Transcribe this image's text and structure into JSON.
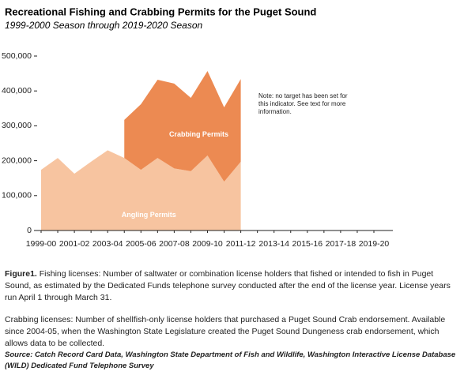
{
  "chart_data": {
    "type": "stacked_area",
    "title": "Recreational Fishing and Crabbing Permits for the Puget Sound",
    "subtitle": "1999-2000 Season through 2019-2020 Season",
    "categories": [
      "1999-00",
      null,
      "2001-02",
      null,
      "2003-04",
      null,
      "2005-06",
      null,
      "2007-08",
      null,
      "2009-10",
      null,
      "2011-12",
      null,
      "2013-14",
      null,
      "2015-16",
      null,
      "2017-18",
      null,
      "2019-20"
    ],
    "series": [
      {
        "name": "Angling Permits",
        "color": "#f7c4a0",
        "values": [
          174000,
          208000,
          163000,
          197000,
          230000,
          208000,
          174000,
          208000,
          178000,
          170000,
          215000,
          140000,
          197000,
          null,
          null,
          null,
          null,
          null,
          null,
          null,
          null
        ]
      },
      {
        "name": "Crabbing Permits",
        "color": "#ec8a52",
        "values": [
          null,
          null,
          null,
          null,
          null,
          109000,
          188000,
          224000,
          243000,
          210000,
          242000,
          213000,
          237000,
          null,
          null,
          null,
          null,
          null,
          null,
          null,
          null
        ]
      }
    ],
    "ylim": [
      0,
      500000
    ],
    "yticks": [
      0,
      {
        "value": 100000,
        "label": "100,000"
      },
      {
        "value": 200000,
        "label": "200,000"
      },
      {
        "value": 300000,
        "label": "300,000"
      },
      {
        "value": 400000,
        "label": "400,000"
      },
      {
        "value": 500000,
        "label": "500,000"
      }
    ],
    "annotation": "Note: no target has been set for this indicator. See text for more information."
  },
  "caption": {
    "label": "Figure1.",
    "text": " Fishing licenses: Number of saltwater or combination license holders that fished or intended to fish in Puget Sound, as estimated by the Dedicated Funds telephone survey conducted after the end of the license year. License years run April 1 through March 31.",
    "crab": "Crabbing licenses: Number of shellfish-only license holders that purchased a Puget Sound Crab endorsement. Available since 2004-05, when the Washington State Legislature created the Puget Sound Dungeness crab endorsement, which allows data to be collected.",
    "source": "Source: Catch Record Card Data, Washington State Department of Fish and Wildlife, Washington Interactive License Database (WILD) Dedicated Fund Telephone Survey"
  }
}
